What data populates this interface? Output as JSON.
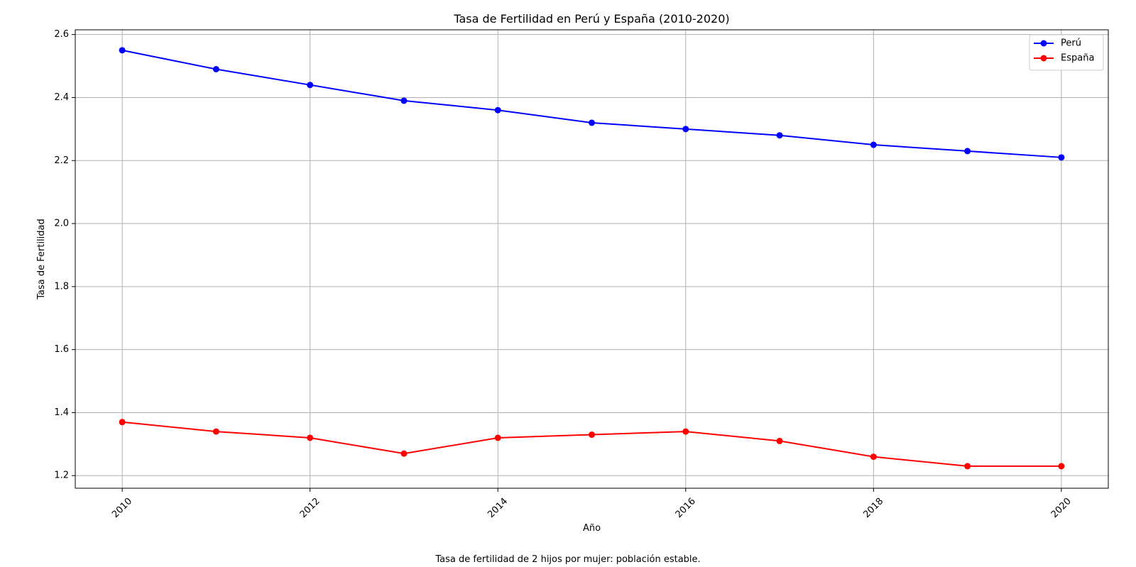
{
  "chart_data": {
    "type": "line",
    "title": "Tasa de Fertilidad en Perú y España (2010-2020)",
    "xlabel": "Año",
    "ylabel": "Tasa de Fertilidad",
    "x": [
      2010,
      2011,
      2012,
      2013,
      2014,
      2015,
      2016,
      2017,
      2018,
      2019,
      2020
    ],
    "xticks": [
      "2010",
      "2012",
      "2014",
      "2016",
      "2018",
      "2020"
    ],
    "yticks": [
      "1.2",
      "1.4",
      "1.6",
      "1.8",
      "2.0",
      "2.2",
      "2.4",
      "2.6"
    ],
    "xlim": [
      2009.5,
      2020.5
    ],
    "ylim": [
      1.16,
      2.615
    ],
    "grid": true,
    "legend_position": "top-right",
    "series": [
      {
        "name": "Perú",
        "color": "#0000ff",
        "marker": "circle",
        "values": [
          2.55,
          2.49,
          2.44,
          2.39,
          2.36,
          2.32,
          2.3,
          2.28,
          2.25,
          2.23,
          2.21
        ]
      },
      {
        "name": "España",
        "color": "#ff0000",
        "marker": "circle",
        "values": [
          1.37,
          1.34,
          1.32,
          1.27,
          1.32,
          1.33,
          1.34,
          1.31,
          1.26,
          1.23,
          1.23
        ]
      }
    ],
    "footnote": "Tasa de fertilidad de 2 hijos por mujer: población estable."
  }
}
